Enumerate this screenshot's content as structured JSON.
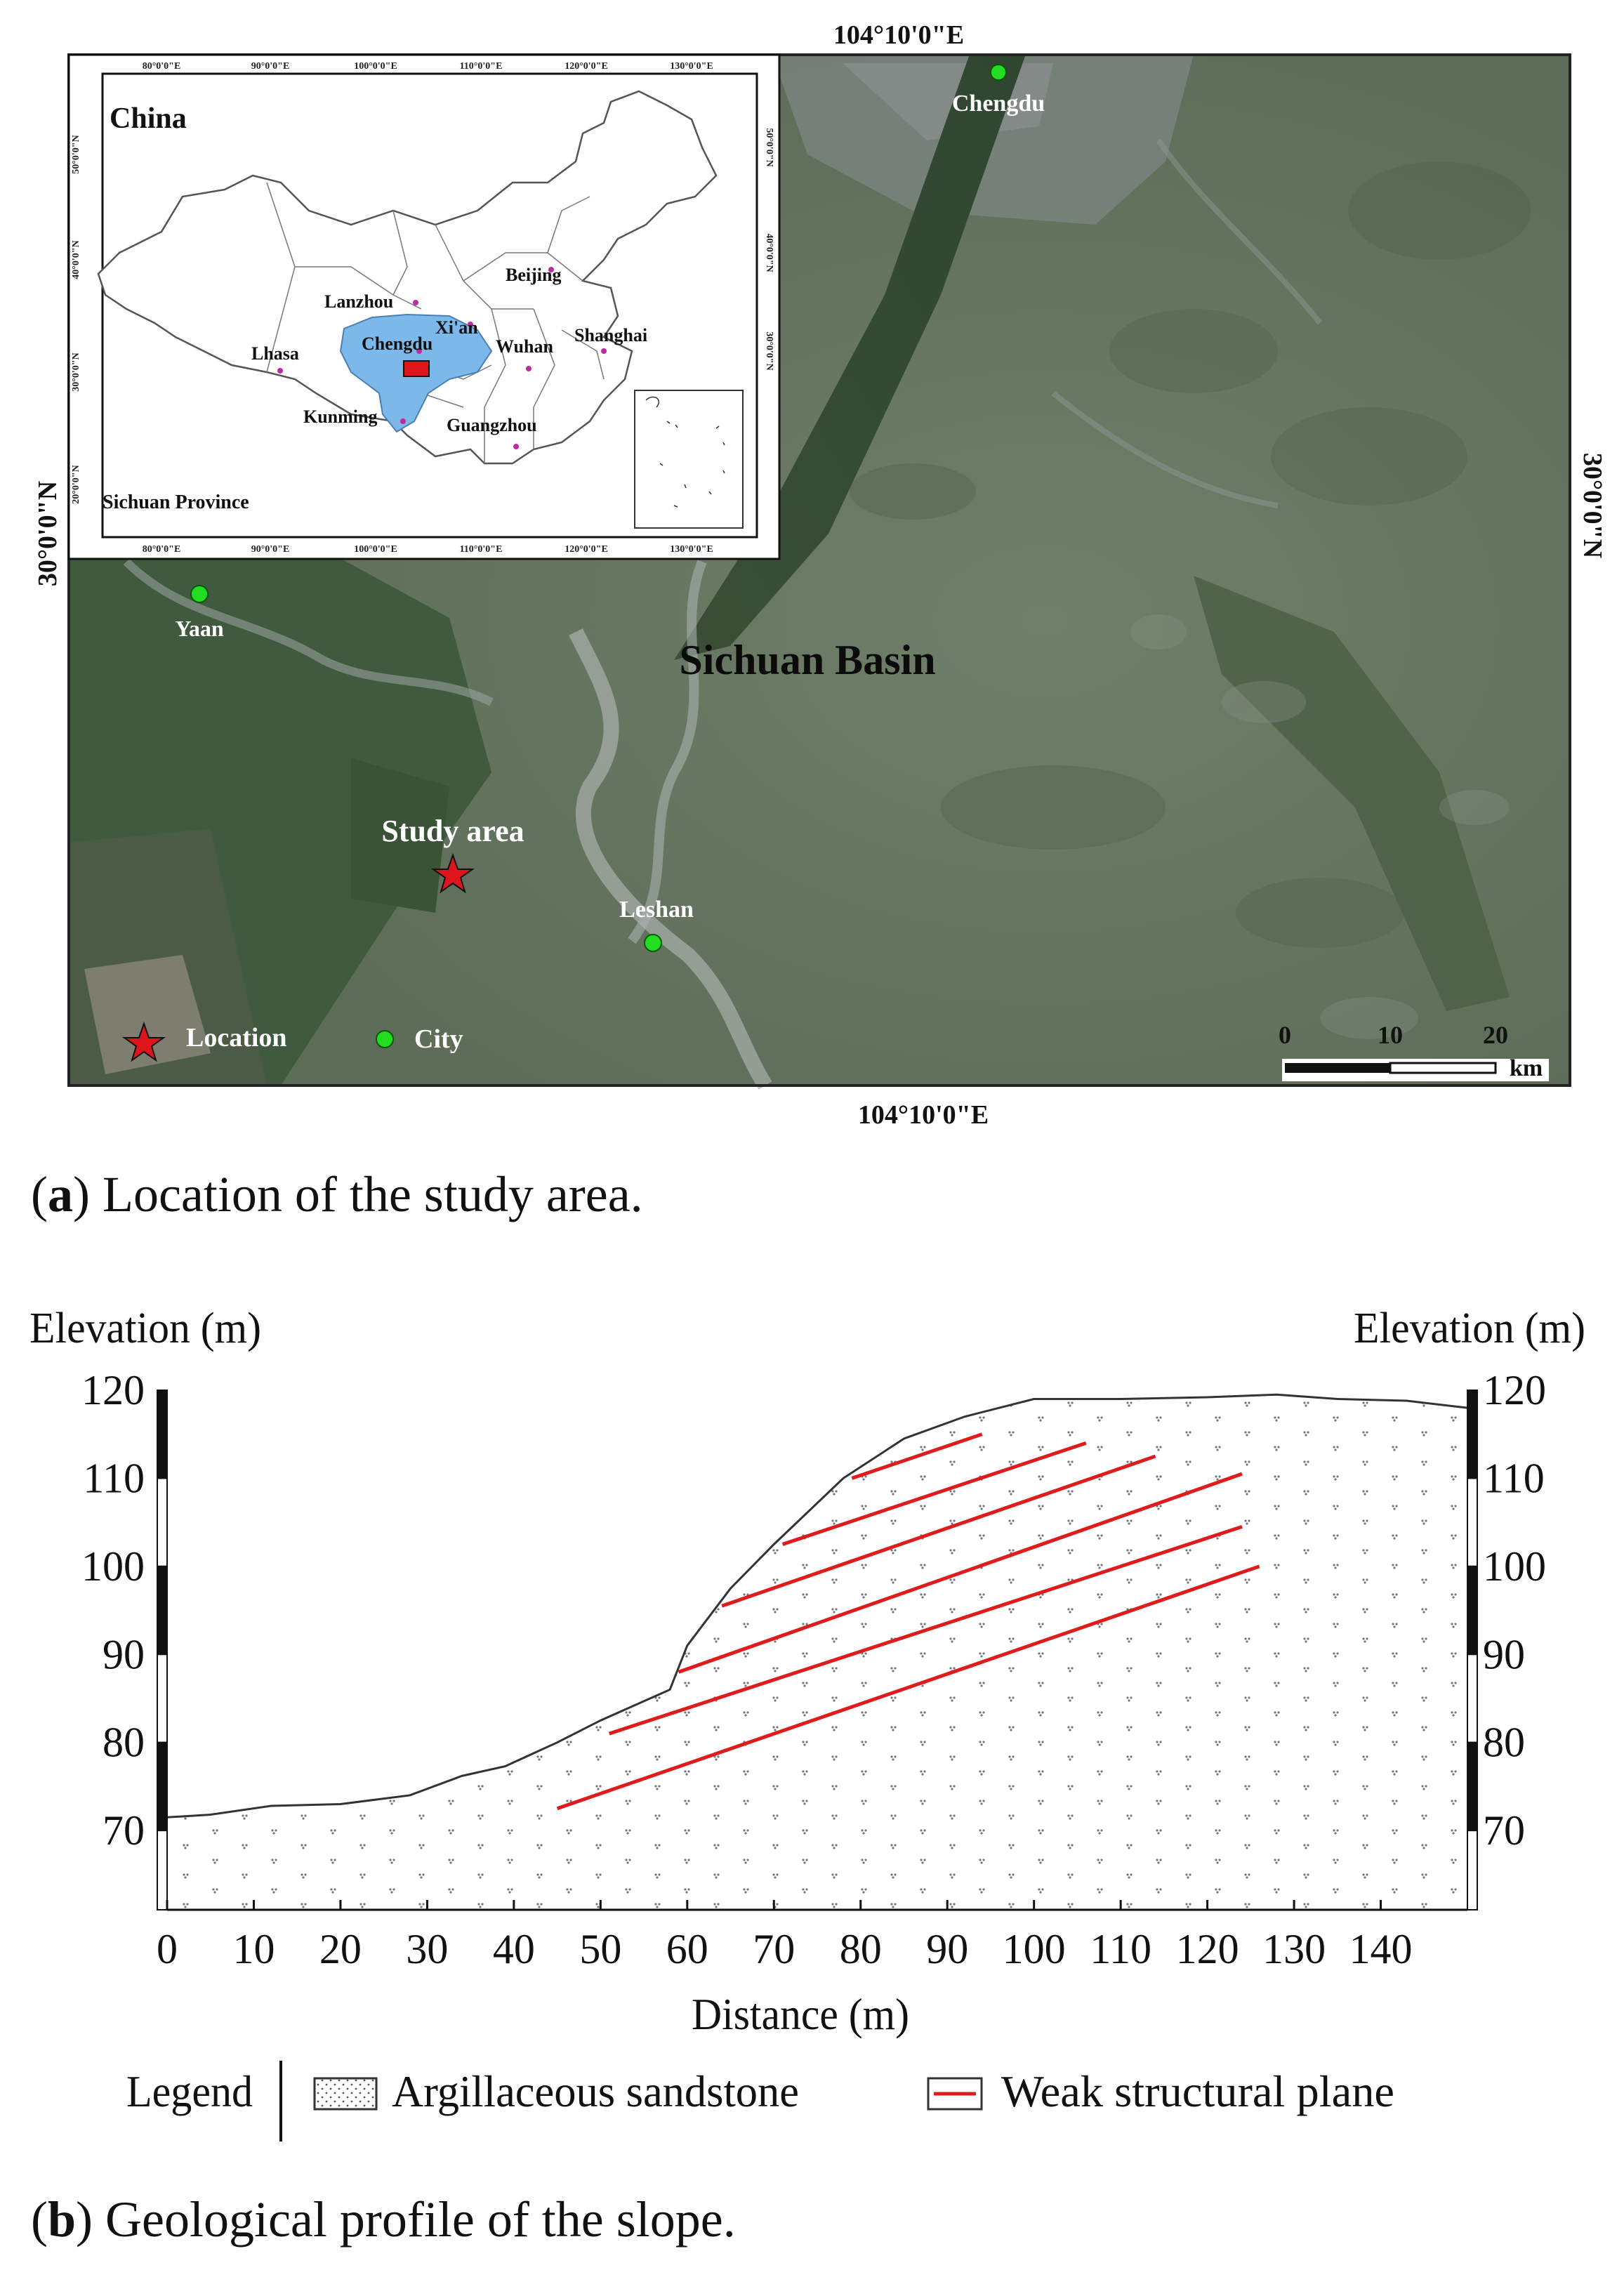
{
  "panel_a": {
    "coord_top": "104°10'0\"E",
    "coord_bottom": "104°10'0\"E",
    "coord_left": "30°0'0\"N",
    "coord_right": "30°0'0\"N",
    "region_label": "Sichuan Basin",
    "cities": [
      {
        "name": "Chengdu"
      },
      {
        "name": "Yaan"
      },
      {
        "name": "Leshan"
      }
    ],
    "study_area_label": "Study area",
    "legend_location": "Location",
    "legend_city": "City",
    "scale_ticks": [
      "0",
      "10",
      "20"
    ],
    "scale_unit": "km",
    "colors": {
      "city": "#22dd22",
      "star": "#e0141c",
      "terrain": "#5c7258",
      "inset_province": "#7db8ea"
    },
    "inset": {
      "title": "China",
      "subtitle": "Sichuan Province",
      "lon_ticks": [
        "80°0'0\"E",
        "90°0'0\"E",
        "100°0'0\"E",
        "110°0'0\"E",
        "120°0'0\"E",
        "130°0'0\"E"
      ],
      "lat_ticks": [
        "20°0'0\"N",
        "30°0'0\"N",
        "40°0'0\"N",
        "50°0'0\"N"
      ],
      "cities": [
        "Beijing",
        "Lanzhou",
        "Xi'an",
        "Shanghai",
        "Chengdu",
        "Wuhan",
        "Lhasa",
        "Kunming",
        "Guangzhou"
      ]
    },
    "caption_bold": "a",
    "caption_text": "Location of the study area."
  },
  "panel_b": {
    "elevation_label_left": "Elevation (m)",
    "elevation_label_right": "Elevation (m)",
    "y_ticks": [
      "120",
      "110",
      "100",
      "90",
      "80",
      "70"
    ],
    "x_ticks": [
      "0",
      "10",
      "20",
      "30",
      "40",
      "50",
      "60",
      "70",
      "80",
      "90",
      "100",
      "110",
      "120",
      "130",
      "140"
    ],
    "x_axis_label": "Distance (m)",
    "legend_title": "Legend",
    "legend_sandstone": "Argillaceous sandstone",
    "legend_plane": "Weak structural plane",
    "caption_bold": "b",
    "caption_text": "Geological profile of the slope.",
    "chart_data": {
      "type": "line",
      "xlabel": "Distance (m)",
      "ylabel": "Elevation (m)",
      "xlim": [
        0,
        150
      ],
      "ylim": [
        61,
        120
      ],
      "surface_profile": {
        "x": [
          0,
          5,
          12,
          20,
          28,
          34,
          39,
          45,
          50,
          58,
          60,
          65,
          70,
          78,
          85,
          92,
          100,
          110,
          120,
          128,
          135,
          143,
          150
        ],
        "y": [
          71.5,
          71.8,
          72.8,
          73,
          74,
          76.2,
          77.3,
          80,
          82.5,
          86,
          91,
          97.5,
          102.5,
          110,
          114.5,
          117,
          119,
          119,
          119.2,
          119.5,
          119,
          118.8,
          118
        ]
      },
      "weak_planes": [
        {
          "x": [
            45,
            126
          ],
          "y": [
            72.5,
            100
          ]
        },
        {
          "x": [
            51,
            124
          ],
          "y": [
            81,
            104.5
          ]
        },
        {
          "x": [
            59,
            124
          ],
          "y": [
            88,
            110.5
          ]
        },
        {
          "x": [
            64,
            114
          ],
          "y": [
            95.5,
            112.5
          ]
        },
        {
          "x": [
            71,
            106
          ],
          "y": [
            102.5,
            114
          ]
        },
        {
          "x": [
            79,
            94
          ],
          "y": [
            110,
            115
          ]
        }
      ],
      "colors": {
        "weak_plane": "#e01b1b",
        "surface": "#333333"
      }
    }
  }
}
